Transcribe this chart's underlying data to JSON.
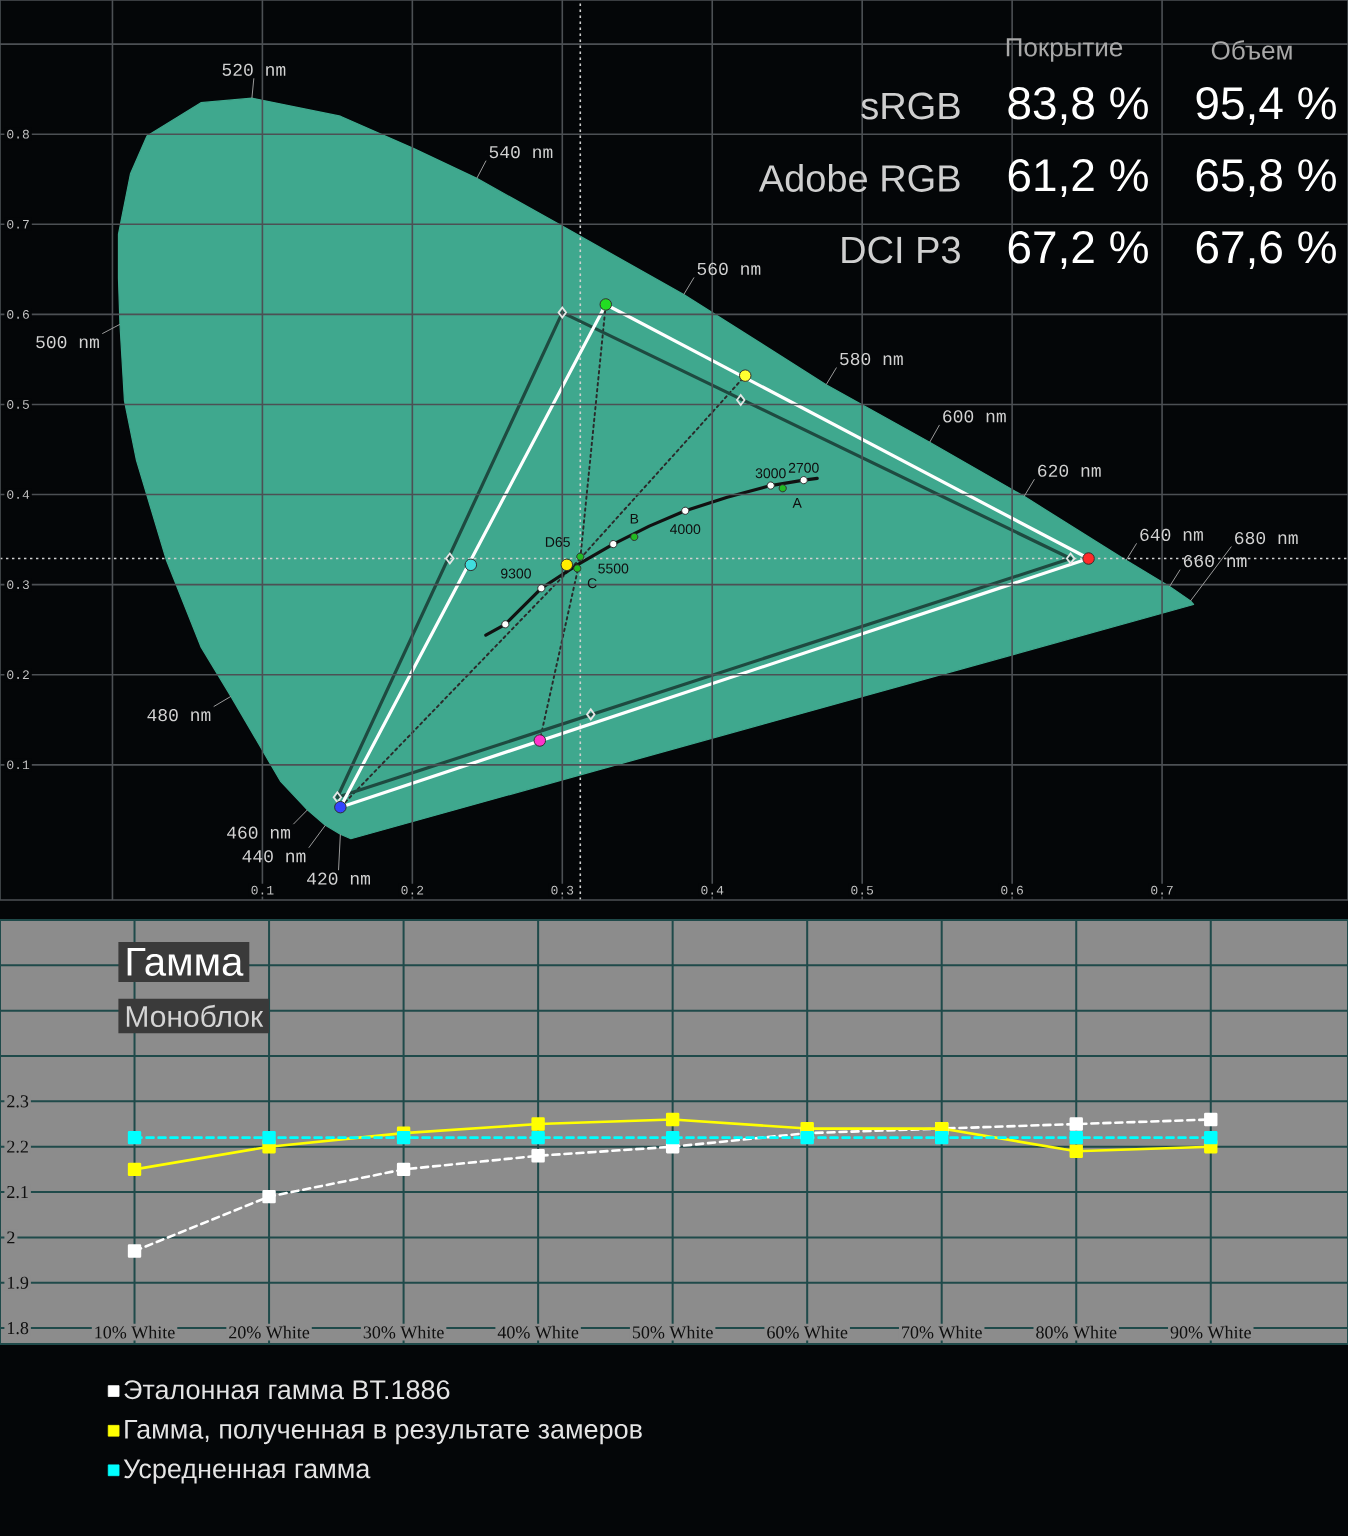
{
  "chart_data": [
    {
      "type": "line",
      "xlim": [
        -0.075,
        0.824
      ],
      "ylim": [
        -0.05,
        0.949
      ],
      "xticks": [
        {
          "value": 0,
          "label": null
        },
        0.1,
        0.2,
        0.3,
        0.4,
        0.5,
        0.6,
        0.7
      ],
      "yticks": [
        0.1,
        0.2,
        0.3,
        0.4,
        0.5,
        0.6,
        0.7,
        0.8,
        {
          "value": 0.9,
          "label": null
        }
      ],
      "grid": true,
      "ref_lines": [
        {
          "axis": "x",
          "value": 0.312,
          "color": "#d0d0d0",
          "line_style": "dotted"
        },
        {
          "axis": "y",
          "value": 0.329,
          "color": "#d0d0d0",
          "line_style": "dotted"
        }
      ],
      "series": [
        {
          "type": "area",
          "color": "#3fa88e",
          "marker": "none",
          "x": [
            0.159,
            0.152,
            0.142,
            0.13,
            0.112,
            0.079,
            0.059,
            0.036,
            0.016,
            0.008,
            0.005,
            0.004,
            0.004,
            0.012,
            0.023,
            0.059,
            0.093,
            0.152,
            0.201,
            0.243,
            0.3,
            0.381,
            0.476,
            0.545,
            0.608,
            0.676,
            0.705,
            0.719,
            0.721
          ],
          "values": [
            0.018,
            0.023,
            0.033,
            0.05,
            0.082,
            0.176,
            0.231,
            0.327,
            0.438,
            0.504,
            0.589,
            0.64,
            0.689,
            0.756,
            0.798,
            0.835,
            0.84,
            0.82,
            0.784,
            0.751,
            0.698,
            0.622,
            0.522,
            0.458,
            0.398,
            0.327,
            0.298,
            0.282,
            0.278
          ]
        },
        {
          "type": "line",
          "color": "#2a2a2a",
          "marker": "none",
          "line_style": "dotted",
          "x": [
            0.312,
            0.329
          ],
          "values": [
            0.329,
            0.611
          ]
        },
        {
          "type": "line",
          "color": "#2a2a2a",
          "marker": "none",
          "line_style": "dotted",
          "x": [
            0.312,
            0.422
          ],
          "values": [
            0.329,
            0.532
          ]
        },
        {
          "type": "line",
          "color": "#2a2a2a",
          "marker": "none",
          "line_style": "dotted",
          "x": [
            0.312,
            0.152
          ],
          "values": [
            0.329,
            0.053
          ]
        },
        {
          "type": "line",
          "color": "#2a2a2a",
          "marker": "none",
          "line_style": "dotted",
          "x": [
            0.312,
            0.285
          ],
          "values": [
            0.329,
            0.127
          ]
        },
        {
          "type": "line",
          "color": "#111111",
          "marker": "none",
          "x": [
            0.249,
            0.262,
            0.286,
            0.31,
            0.334,
            0.358,
            0.382,
            0.41,
            0.439,
            0.461,
            0.47
          ],
          "values": [
            0.244,
            0.256,
            0.296,
            0.322,
            0.345,
            0.365,
            0.382,
            0.397,
            0.41,
            0.416,
            0.418
          ]
        },
        {
          "type": "line",
          "color": "#1e4a40",
          "marker": "none",
          "x": [
            0.639,
            0.3
          ],
          "values": [
            0.329,
            0.602
          ]
        },
        {
          "type": "line",
          "color": "#1e4a40",
          "marker": "none",
          "x": [
            0.3,
            0.15
          ],
          "values": [
            0.602,
            0.064
          ]
        },
        {
          "type": "line",
          "color": "#1e4a40",
          "marker": "none",
          "x": [
            0.15,
            0.639
          ],
          "values": [
            0.064,
            0.329
          ]
        },
        {
          "type": "line",
          "color": "#ffffff",
          "marker": "none",
          "x": [
            0.651,
            0.329
          ],
          "values": [
            0.329,
            0.611
          ]
        },
        {
          "type": "line",
          "color": "#ffffff",
          "marker": "none",
          "x": [
            0.329,
            0.152
          ],
          "values": [
            0.611,
            0.053
          ]
        },
        {
          "type": "line",
          "color": "#ffffff",
          "marker": "none",
          "x": [
            0.152,
            0.651
          ],
          "values": [
            0.053,
            0.329
          ]
        },
        {
          "type": "scatter",
          "color": "#e6e6e6",
          "marker": "diamond",
          "x": [
            0.639,
            0.419,
            0.3,
            0.225,
            0.15,
            0.319
          ],
          "values": [
            0.329,
            0.505,
            0.602,
            0.329,
            0.064,
            0.156
          ]
        },
        {
          "type": "scatter",
          "color": "#ffffff",
          "marker": "circle",
          "x": [
            0.262,
            0.286,
            0.334,
            0.382,
            0.439,
            0.461
          ],
          "values": [
            0.256,
            0.296,
            0.345,
            0.382,
            0.41,
            0.416
          ]
        },
        {
          "type": "scatter",
          "color": "#22bb22",
          "marker": "circle",
          "x": [
            0.447,
            0.348,
            0.31,
            0.312
          ],
          "values": [
            0.407,
            0.353,
            0.318,
            0.331
          ]
        },
        {
          "type": "scatter",
          "color": "#ffffff",
          "marker": "circle",
          "x": [
            0.651,
            0.422,
            0.329,
            0.239,
            0.152,
            0.285,
            0.303
          ],
          "values": [
            0.329,
            0.532,
            0.611,
            0.322,
            0.053,
            0.127,
            0.322
          ],
          "colors": [
            "#ff2a2a",
            "#ffff30",
            "#22dd22",
            "#40dddd",
            "#3344ff",
            "#ff33cc",
            "#ffee00"
          ]
        }
      ],
      "annotations": [
        {
          "text": "520 nm",
          "x": 0.093,
          "y": 0.84
        },
        {
          "text": "540 nm",
          "x": 0.243,
          "y": 0.751
        },
        {
          "text": "560 nm",
          "x": 0.381,
          "y": 0.622
        },
        {
          "text": "580 nm",
          "x": 0.476,
          "y": 0.522
        },
        {
          "text": "600 nm",
          "x": 0.545,
          "y": 0.458
        },
        {
          "text": "620 nm",
          "x": 0.608,
          "y": 0.398
        },
        {
          "text": "640 nm",
          "x": 0.676,
          "y": 0.327
        },
        {
          "text": "660 nm",
          "x": 0.705,
          "y": 0.298
        },
        {
          "text": "680 nm",
          "x": 0.719,
          "y": 0.282
        },
        {
          "text": "500 nm",
          "x": 0.005,
          "y": 0.589
        },
        {
          "text": "480 nm",
          "x": 0.079,
          "y": 0.176
        },
        {
          "text": "460 nm",
          "x": 0.13,
          "y": 0.05
        },
        {
          "text": "440 nm",
          "x": 0.142,
          "y": 0.033
        },
        {
          "text": "420 nm",
          "x": 0.152,
          "y": 0.023
        },
        {
          "text": "9300",
          "x": 0.286,
          "y": 0.296
        },
        {
          "text": "5500",
          "x": 0.334,
          "y": 0.345
        },
        {
          "text": "4000",
          "x": 0.382,
          "y": 0.382
        },
        {
          "text": "3000",
          "x": 0.439,
          "y": 0.41
        },
        {
          "text": "2700",
          "x": 0.461,
          "y": 0.416
        },
        {
          "text": "D65",
          "x": 0.312,
          "y": 0.331
        },
        {
          "text": "A",
          "x": 0.447,
          "y": 0.407
        },
        {
          "text": "B",
          "x": 0.348,
          "y": 0.353
        },
        {
          "text": "C",
          "x": 0.31,
          "y": 0.318
        }
      ]
    },
    {
      "type": "other",
      "categories": [
        "Покрытие",
        "Объем"
      ],
      "y_categories": [
        "sRGB",
        "Adobe RGB",
        "DCI P3"
      ],
      "cell_labels": [
        [
          "83,8 %",
          "95,4 %"
        ],
        [
          "61,2 %",
          "65,8 %"
        ],
        [
          "67,2 %",
          "67,6 %"
        ]
      ]
    },
    {
      "type": "line",
      "title": "Гамма",
      "subtitle": "Моноблок",
      "categories": [
        "10% White",
        "20% White",
        "30% White",
        "40% White",
        "50% White",
        "60% White",
        "70% White",
        "80% White",
        "90% White"
      ],
      "ylim": [
        1.765,
        2.7
      ],
      "yticks": [
        1.8,
        1.9,
        2,
        2.1,
        2.2,
        2.3,
        {
          "value": 2.4,
          "label": null
        },
        {
          "value": 2.5,
          "label": null
        },
        {
          "value": 2.6,
          "label": null
        }
      ],
      "grid": true,
      "marker": "square",
      "legend": "bottom",
      "series": [
        {
          "name": "Эталонная гамма BT.1886",
          "color": "#ffffff",
          "line_style": "dashed",
          "values": [
            1.97,
            2.09,
            2.15,
            2.18,
            2.2,
            2.23,
            2.24,
            2.25,
            2.26
          ]
        },
        {
          "name": "Гамма, полученная в результате замеров",
          "color": "#ffff00",
          "line_style": "solid",
          "values": [
            2.15,
            2.2,
            2.23,
            2.25,
            2.26,
            2.24,
            2.24,
            2.19,
            2.2
          ]
        },
        {
          "name": "Усредненная гамма",
          "color": "#00ffff",
          "line_style": "dashed",
          "values": [
            2.22,
            2.22,
            2.22,
            2.22,
            2.22,
            2.22,
            2.22,
            2.22,
            2.22
          ]
        }
      ]
    }
  ]
}
